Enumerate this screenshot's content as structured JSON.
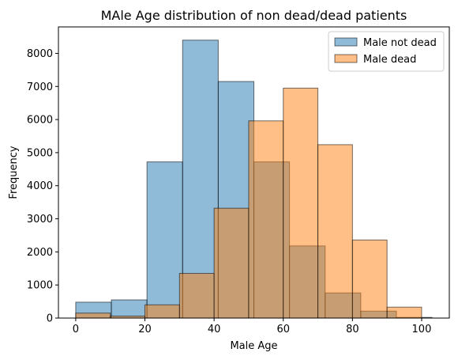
{
  "chart_data": {
    "type": "bar",
    "subtype": "overlapping-histogram",
    "title": "MAle Age distribution of non dead/dead patients",
    "xlabel": "Male Age",
    "ylabel": "Frequency",
    "xlim": [
      -5,
      108
    ],
    "ylim": [
      0,
      8800
    ],
    "xticks": [
      0,
      20,
      40,
      60,
      80,
      100
    ],
    "yticks": [
      0,
      1000,
      2000,
      3000,
      4000,
      5000,
      6000,
      7000,
      8000
    ],
    "grid": false,
    "legend_position": "top-right",
    "series": [
      {
        "name": "Male not dead",
        "color": "#1f77b4",
        "alpha": 0.5,
        "bin_edges": [
          0,
          10.3,
          20.6,
          30.9,
          41.2,
          51.5,
          61.8,
          72.1,
          82.4,
          92.7,
          103
        ],
        "values": [
          480,
          550,
          4720,
          8400,
          7150,
          4720,
          2180,
          760,
          210,
          20
        ]
      },
      {
        "name": "Male dead",
        "color": "#ff7f0e",
        "alpha": 0.5,
        "bin_edges": [
          0,
          10,
          20,
          30,
          40,
          50,
          60,
          70,
          80,
          90,
          100
        ],
        "values": [
          150,
          60,
          400,
          1350,
          3320,
          5960,
          6950,
          5240,
          2360,
          330
        ]
      }
    ]
  }
}
